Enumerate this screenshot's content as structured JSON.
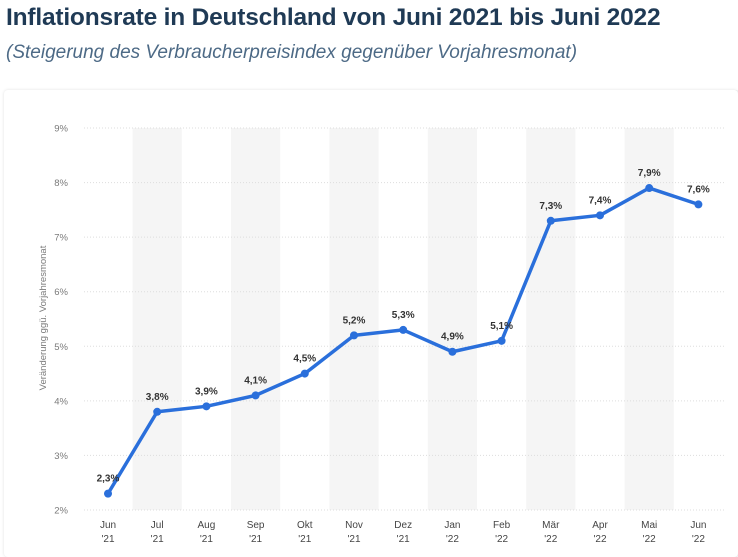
{
  "header": {
    "title": "Inflationsrate in Deutschland von Juni 2021 bis Juni 2022",
    "subtitle": "(Steigerung des Verbraucherpreisindex gegenüber Vorjahresmonat)"
  },
  "colors": {
    "line": "#2a6fdb",
    "band": "#f5f5f5",
    "grid": "#dddddd",
    "title": "#1f3a55",
    "subtitle": "#4d6a86"
  },
  "chart_data": {
    "type": "line",
    "title": "Inflationsrate in Deutschland von Juni 2021 bis Juni 2022",
    "subtitle": "(Steigerung des Verbraucherpreisindex gegenüber Vorjahresmonat)",
    "xlabel": "",
    "ylabel": "Veränderung ggü. Vorjahresmonat",
    "categories": [
      [
        "Jun",
        "'21"
      ],
      [
        "Jul",
        "'21"
      ],
      [
        "Aug",
        "'21"
      ],
      [
        "Sep",
        "'21"
      ],
      [
        "Okt",
        "'21"
      ],
      [
        "Nov",
        "'21"
      ],
      [
        "Dez",
        "'21"
      ],
      [
        "Jan",
        "'22"
      ],
      [
        "Feb",
        "'22"
      ],
      [
        "Mär",
        "'22"
      ],
      [
        "Apr",
        "'22"
      ],
      [
        "Mai",
        "'22"
      ],
      [
        "Jun",
        "'22"
      ]
    ],
    "values": [
      2.3,
      3.8,
      3.9,
      4.1,
      4.5,
      5.2,
      5.3,
      4.9,
      5.1,
      7.3,
      7.4,
      7.9,
      7.6
    ],
    "value_labels": [
      "2,3%",
      "3,8%",
      "3,9%",
      "4,1%",
      "4,5%",
      "5,2%",
      "5,3%",
      "4,9%",
      "5,1%",
      "7,3%",
      "7,4%",
      "7,9%",
      "7,6%"
    ],
    "ylim": [
      2,
      9
    ],
    "yticks": [
      2,
      3,
      4,
      5,
      6,
      7,
      8,
      9
    ],
    "ytick_labels": [
      "2%",
      "3%",
      "4%",
      "5%",
      "6%",
      "7%",
      "8%",
      "9%"
    ],
    "grid": true,
    "legend": "none"
  }
}
